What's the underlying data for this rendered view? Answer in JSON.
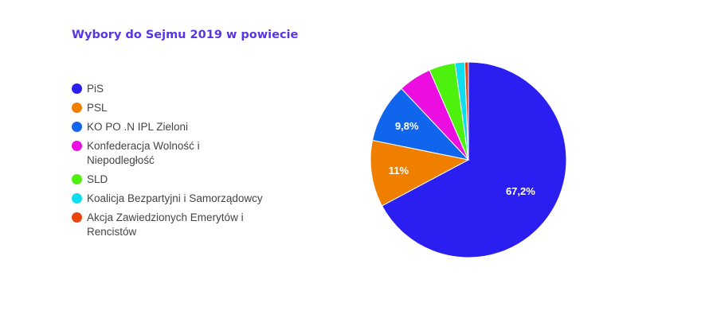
{
  "chart_data": {
    "type": "pie",
    "title": "Wybory do Sejmu 2019 w powiecie",
    "legend_position": "left",
    "slices": [
      {
        "label": "PiS",
        "value": 67.2,
        "color": "#2b1ef0",
        "show_label": true,
        "display": "67,2%"
      },
      {
        "label": "PSL",
        "value": 11.0,
        "color": "#f07f00",
        "show_label": true,
        "display": "11%"
      },
      {
        "label": "KO PO .N IPL Zieloni",
        "value": 9.8,
        "color": "#0f66ec",
        "show_label": true,
        "display": "9,8%"
      },
      {
        "label": "Konfederacja Wolność i Niepodległość",
        "label_lines": [
          "Konfederacja Wolność i",
          "Niepodległość"
        ],
        "value": 5.5,
        "color": "#ec0ee0",
        "show_label": false,
        "display": ""
      },
      {
        "label": "SLD",
        "value": 4.3,
        "color": "#4ef00e",
        "show_label": false,
        "display": ""
      },
      {
        "label": "Koalicja Bezpartyjni i Samorządowcy",
        "value": 1.6,
        "color": "#0edcef",
        "show_label": false,
        "display": ""
      },
      {
        "label": "Akcja Zawiedzionych Emerytów i Rencistów",
        "label_lines": [
          "Akcja Zawiedzionych Emerytów i",
          "Rencistów"
        ],
        "value": 0.6,
        "color": "#e8450c",
        "show_label": false,
        "display": ""
      }
    ]
  }
}
